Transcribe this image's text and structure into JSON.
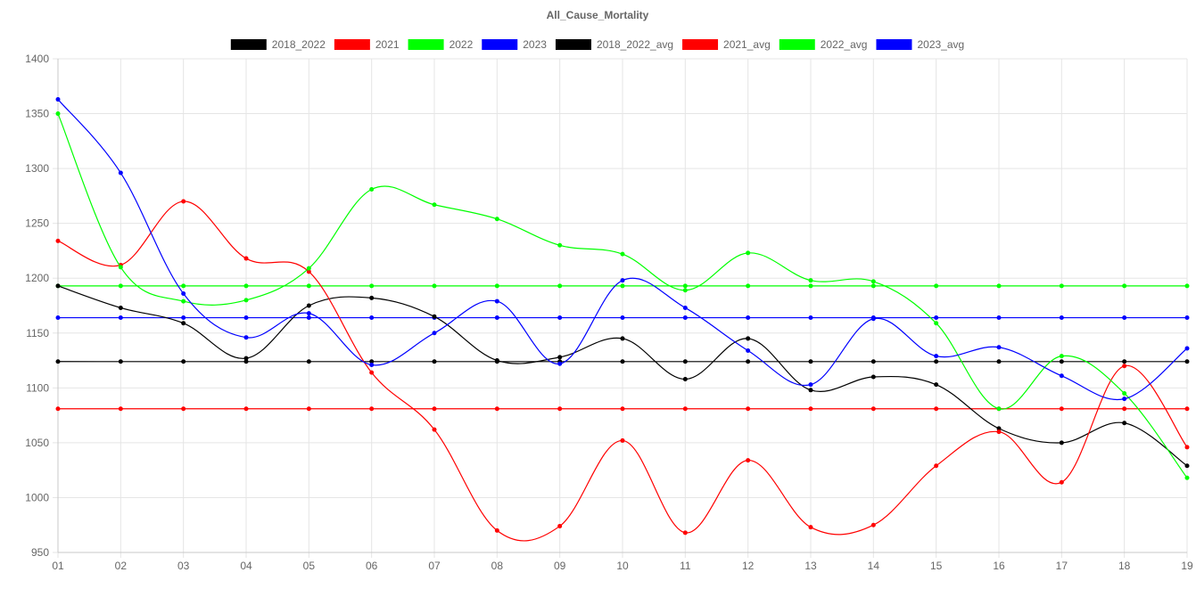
{
  "chart_data": {
    "type": "line",
    "title": "All_Cause_Mortality",
    "xlabel": "",
    "ylabel": "",
    "categories": [
      "01",
      "02",
      "03",
      "04",
      "05",
      "06",
      "07",
      "08",
      "09",
      "10",
      "11",
      "12",
      "13",
      "14",
      "15",
      "16",
      "17",
      "18",
      "19"
    ],
    "y_ticks": [
      "1400",
      "1350",
      "1300",
      "1250",
      "1200",
      "1150",
      "1100",
      "1050",
      "1000",
      "950"
    ],
    "ylim": [
      950,
      1400
    ],
    "grid": true,
    "legend_position": "top",
    "series": [
      {
        "name": "2018_2022",
        "color": "#000000",
        "values": [
          1193,
          1173,
          1159,
          1127,
          1175,
          1182,
          1165,
          1125,
          1128,
          1145,
          1108,
          1145,
          1098,
          1110,
          1103,
          1063,
          1050,
          1068,
          1029
        ]
      },
      {
        "name": "2021",
        "color": "#ff0000",
        "values": [
          1234,
          1212,
          1270,
          1218,
          1206,
          1114,
          1062,
          970,
          974,
          1052,
          968,
          1034,
          973,
          975,
          1029,
          1060,
          1014,
          1120,
          1046
        ]
      },
      {
        "name": "2022",
        "color": "#00ff00",
        "values": [
          1350,
          1210,
          1179,
          1180,
          1209,
          1281,
          1267,
          1254,
          1230,
          1222,
          1189,
          1223,
          1198,
          1197,
          1159,
          1081,
          1129,
          1095,
          1018
        ]
      },
      {
        "name": "2023",
        "color": "#0000ff",
        "values": [
          1363,
          1296,
          1186,
          1146,
          1168,
          1121,
          1150,
          1179,
          1122,
          1198,
          1173,
          1134,
          1103,
          1163,
          1129,
          1137,
          1111,
          1090,
          1136
        ]
      },
      {
        "name": "2018_2022_avg",
        "color": "#000000",
        "values": [
          1124,
          1124,
          1124,
          1124,
          1124,
          1124,
          1124,
          1124,
          1124,
          1124,
          1124,
          1124,
          1124,
          1124,
          1124,
          1124,
          1124,
          1124,
          1124
        ]
      },
      {
        "name": "2021_avg",
        "color": "#ff0000",
        "values": [
          1081,
          1081,
          1081,
          1081,
          1081,
          1081,
          1081,
          1081,
          1081,
          1081,
          1081,
          1081,
          1081,
          1081,
          1081,
          1081,
          1081,
          1081,
          1081
        ]
      },
      {
        "name": "2022_avg",
        "color": "#00ff00",
        "values": [
          1193,
          1193,
          1193,
          1193,
          1193,
          1193,
          1193,
          1193,
          1193,
          1193,
          1193,
          1193,
          1193,
          1193,
          1193,
          1193,
          1193,
          1193,
          1193
        ]
      },
      {
        "name": "2023_avg",
        "color": "#0000ff",
        "values": [
          1164,
          1164,
          1164,
          1164,
          1164,
          1164,
          1164,
          1164,
          1164,
          1164,
          1164,
          1164,
          1164,
          1164,
          1164,
          1164,
          1164,
          1164,
          1164
        ]
      }
    ]
  }
}
